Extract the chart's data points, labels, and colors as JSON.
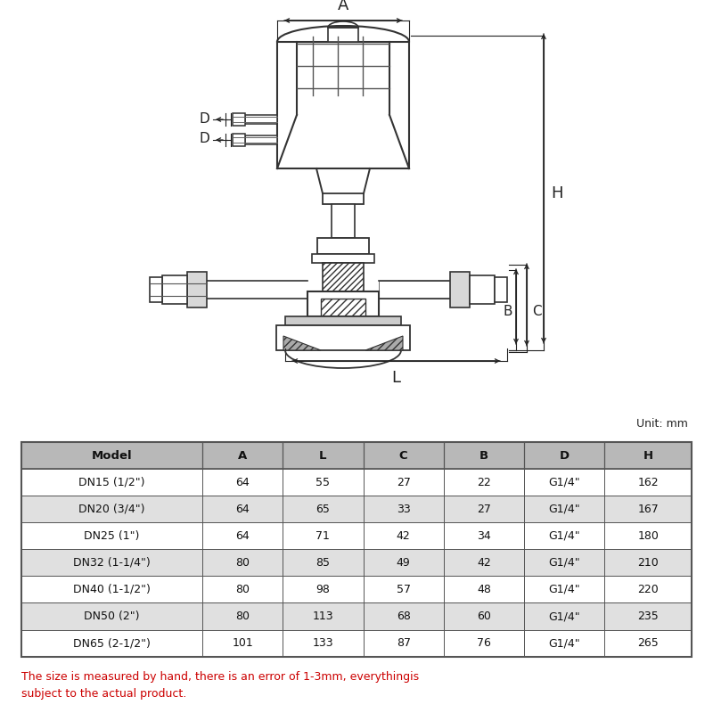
{
  "table_headers": [
    "Model",
    "A",
    "L",
    "C",
    "B",
    "D",
    "H"
  ],
  "table_rows": [
    [
      "DN15 (1/2\")",
      "64",
      "55",
      "27",
      "22",
      "G1/4\"",
      "162"
    ],
    [
      "DN20 (3/4\")",
      "64",
      "65",
      "33",
      "27",
      "G1/4\"",
      "167"
    ],
    [
      "DN25 (1\")",
      "64",
      "71",
      "42",
      "34",
      "G1/4\"",
      "180"
    ],
    [
      "DN32 (1-1/4\")",
      "80",
      "85",
      "49",
      "42",
      "G1/4\"",
      "210"
    ],
    [
      "DN40 (1-1/2\")",
      "80",
      "98",
      "57",
      "48",
      "G1/4\"",
      "220"
    ],
    [
      "DN50 (2\")",
      "80",
      "113",
      "68",
      "60",
      "G1/4\"",
      "235"
    ],
    [
      "DN65 (2-1/2\")",
      "101",
      "133",
      "87",
      "76",
      "G1/4\"",
      "265"
    ]
  ],
  "unit_label": "Unit: mm",
  "note_text": "The size is measured by hand, there is an error of 1-3mm, everythingis\nsubject to the actual product.",
  "note_color": "#cc0000",
  "bg_color": "#ffffff",
  "header_bg": "#b8b8b8",
  "row_bg_even": "#ffffff",
  "row_bg_odd": "#e0e0e0",
  "border_color": "#555555",
  "lc": "#333333",
  "lw": 1.2
}
